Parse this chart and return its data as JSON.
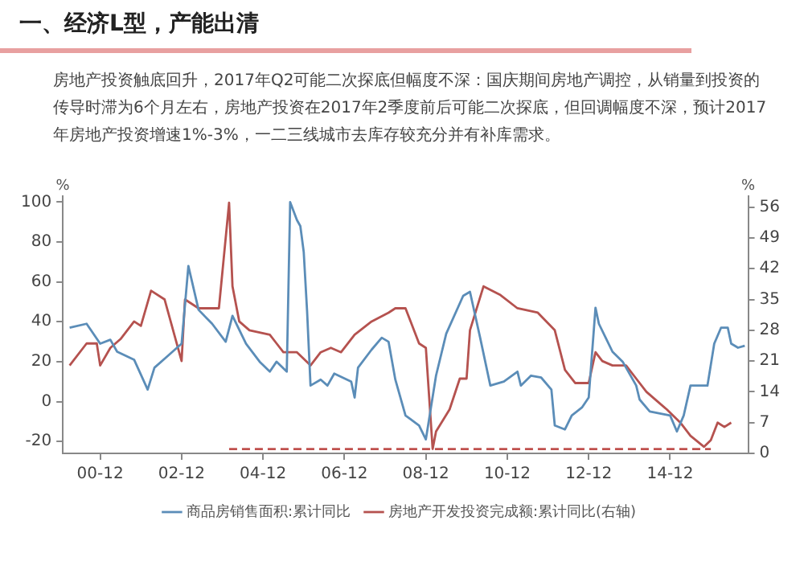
{
  "chart_data": {
    "type": "line",
    "title": "一、经济L型，产能出清",
    "subtitle": "房地产投资触底回升，2017年Q2可能二次探底但幅度不深：国庆期间房地产调控，从销量到投资的传导时滞为6个月左右，房地产投资在2017年2季度前后可能二次探底，但回调幅度不深，预计2017年房地产投资增速1%-3%，一二三线城市去库存较充分并有补库需求。",
    "ylabel": "%",
    "y2label": "%",
    "xlim": [
      "2000-01",
      "2016-11"
    ],
    "xticks": [
      {
        "value": "2000-12",
        "label": "00-12"
      },
      {
        "value": "2002-12",
        "label": "02-12"
      },
      {
        "value": "2004-12",
        "label": "04-12"
      },
      {
        "value": "2006-12",
        "label": "06-12"
      },
      {
        "value": "2008-12",
        "label": "08-12"
      },
      {
        "value": "2010-12",
        "label": "10-12"
      },
      {
        "value": "2012-12",
        "label": "12-12"
      },
      {
        "value": "2014-12",
        "label": "14-12"
      }
    ],
    "ylim": [
      -26,
      103
    ],
    "yticks": [
      -20,
      0,
      20,
      40,
      60,
      80,
      100
    ],
    "y2lim": [
      0,
      58.5
    ],
    "y2ticks": [
      0,
      7,
      14,
      21,
      28,
      35,
      42,
      49,
      56
    ],
    "grid": false,
    "legend": "bottom",
    "marker": "none",
    "series": [
      {
        "name": "商品房销售面积:累计同比",
        "color": "#5b8db8",
        "x": [
          "2000-03",
          "2000-08",
          "2000-12",
          "2001-03",
          "2001-05",
          "2001-10",
          "2002-02",
          "2002-04",
          "2002-08",
          "2002-12",
          "2003-02",
          "2003-05",
          "2003-09",
          "2004-01",
          "2004-03",
          "2004-07",
          "2004-11",
          "2005-02",
          "2005-04",
          "2005-07",
          "2005-08",
          "2005-10",
          "2005-11",
          "2005-12",
          "2006-01",
          "2006-02",
          "2006-05",
          "2006-07",
          "2006-09",
          "2007-02",
          "2007-03",
          "2007-04",
          "2007-08",
          "2007-11",
          "2008-01",
          "2008-03",
          "2008-06",
          "2008-10",
          "2008-12",
          "2009-03",
          "2009-06",
          "2009-11",
          "2010-01",
          "2010-04",
          "2010-07",
          "2010-11",
          "2011-03",
          "2011-04",
          "2011-07",
          "2011-10",
          "2012-01",
          "2012-02",
          "2012-05",
          "2012-07",
          "2012-10",
          "2012-12",
          "2013-02",
          "2013-03",
          "2013-05",
          "2013-07",
          "2013-10",
          "2014-02",
          "2014-03",
          "2014-06",
          "2014-09",
          "2014-12",
          "2015-02",
          "2015-04",
          "2015-06",
          "2015-11",
          "2016-01",
          "2016-03",
          "2016-05",
          "2016-06",
          "2016-08",
          "2016-10"
        ],
        "values": [
          37,
          39,
          29,
          31,
          25,
          21,
          6,
          17,
          23,
          29,
          68,
          46,
          39,
          30,
          43,
          29,
          20,
          15,
          20,
          15,
          100,
          91,
          88,
          75,
          45,
          8,
          11,
          8,
          14,
          10,
          2,
          17,
          26,
          32,
          30,
          11,
          -7,
          -12,
          -19,
          13,
          34,
          53,
          55,
          32,
          8,
          10,
          15,
          8,
          13,
          12,
          6,
          -12,
          -14,
          -7,
          -3,
          2,
          47,
          39,
          32,
          25,
          20,
          8,
          1,
          -5,
          -6,
          -7,
          -15,
          -7,
          8,
          8,
          29,
          37,
          37,
          29,
          27,
          28
        ]
      },
      {
        "name": "房地产开发投资完成额:累计同比(右轴)",
        "color": "#b5524f",
        "axis": "y2",
        "x": [
          "2000-03",
          "2000-08",
          "2000-11",
          "2000-12",
          "2001-03",
          "2001-06",
          "2001-10",
          "2001-12",
          "2002-03",
          "2002-07",
          "2002-12",
          "2003-01",
          "2003-05",
          "2003-11",
          "2004-02",
          "2004-03",
          "2004-05",
          "2004-08",
          "2005-02",
          "2005-04",
          "2005-06",
          "2005-10",
          "2006-02",
          "2006-05",
          "2006-08",
          "2006-11",
          "2007-03",
          "2007-08",
          "2008-01",
          "2008-03",
          "2008-06",
          "2008-10",
          "2008-12",
          "2009-02",
          "2009-03",
          "2009-07",
          "2009-10",
          "2009-12",
          "2010-01",
          "2010-05",
          "2010-10",
          "2011-03",
          "2011-09",
          "2012-02",
          "2012-05",
          "2012-08",
          "2012-12",
          "2013-02",
          "2013-04",
          "2013-07",
          "2013-11",
          "2014-02",
          "2014-05",
          "2014-08",
          "2014-11",
          "2015-03",
          "2015-06",
          "2015-10",
          "2015-12",
          "2016-02",
          "2016-04",
          "2016-06"
        ],
        "values": [
          20,
          25,
          25,
          20,
          24,
          26,
          30,
          29,
          37,
          35,
          21,
          35,
          33,
          33,
          57,
          38,
          30,
          28,
          27,
          25,
          23,
          23,
          20,
          23,
          24,
          23,
          27,
          30,
          32,
          33,
          33,
          25,
          24,
          1,
          5,
          10,
          17,
          17,
          28,
          38,
          36,
          33,
          32,
          28,
          19,
          16,
          16,
          23,
          21,
          20,
          20,
          17,
          14,
          12,
          10,
          7,
          4,
          1.5,
          3,
          7,
          6,
          7
        ]
      },
      {
        "color": "#c0504d",
        "axis": "y2",
        "line_style": "dashed",
        "x": [
          "2004-02",
          "2015-12"
        ],
        "values": [
          1,
          1
        ]
      }
    ]
  }
}
